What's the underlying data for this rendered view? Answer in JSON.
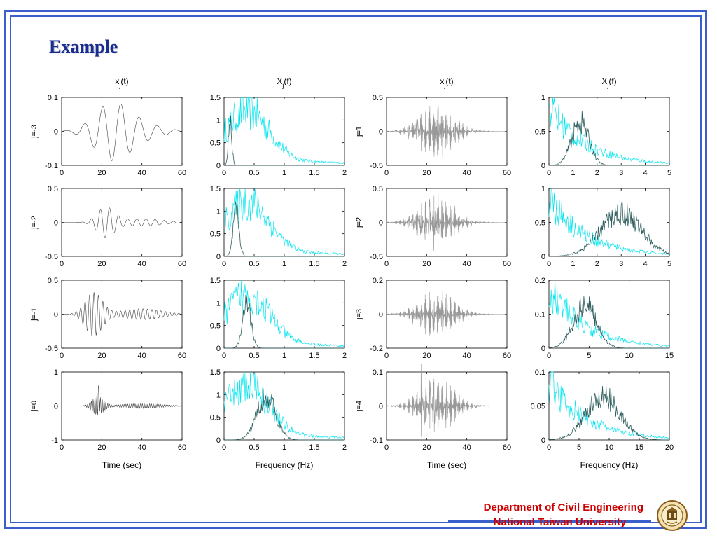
{
  "slide": {
    "title": "Example",
    "footer": {
      "department": "Department of Civil Engineering",
      "university": "National Taiwan University"
    },
    "accent_color": "#3a5fcd",
    "footer_color": "#cc0000",
    "logo_icon": "university-seal-icon"
  },
  "chart_data": {
    "type": "line",
    "layout": "4x4 grid of subplots",
    "column_titles": [
      "x_j(t)",
      "X_j(f)",
      "x_j(t)",
      "X_j(f)"
    ],
    "column_xlabels": [
      "Time (sec)",
      "Frequency (Hz)",
      "Time (sec)",
      "Frequency (Hz)"
    ],
    "row_labels_left": [
      "j=-3",
      "j=-2",
      "j=-1",
      "j=0"
    ],
    "row_labels_right": [
      "j=1",
      "j=2",
      "j=3",
      "j=4"
    ],
    "series_colors": {
      "original_spectrum": "#00e5ee",
      "component_spectrum": "#2e5e5e",
      "time_signal": "#555555"
    },
    "panels": [
      [
        {
          "kind": "time",
          "label": "j=-3",
          "xlim": [
            0,
            60
          ],
          "xticks": [
            "0",
            "20",
            "40",
            "60"
          ],
          "ylim": [
            -0.1,
            0.1
          ],
          "yticks": [
            "-0.1",
            "0",
            "0.1"
          ]
        },
        {
          "kind": "freq",
          "xlim": [
            0,
            2
          ],
          "xticks": [
            "0",
            "0.5",
            "1",
            "1.5",
            "2"
          ],
          "ylim": [
            0,
            1.5
          ],
          "yticks": [
            "0",
            "0.5",
            "1",
            "1.5"
          ]
        },
        {
          "kind": "time",
          "label": "j=1",
          "xlim": [
            0,
            60
          ],
          "xticks": [
            "0",
            "20",
            "40",
            "60"
          ],
          "ylim": [
            -0.5,
            0.5
          ],
          "yticks": [
            "-0.5",
            "0",
            "0.5"
          ]
        },
        {
          "kind": "freq",
          "xlim": [
            0,
            5
          ],
          "xticks": [
            "0",
            "1",
            "2",
            "3",
            "4",
            "5"
          ],
          "ylim": [
            0,
            1
          ],
          "yticks": [
            "0",
            "0.5",
            "1"
          ]
        }
      ],
      [
        {
          "kind": "time",
          "label": "j=-2",
          "xlim": [
            0,
            60
          ],
          "xticks": [
            "0",
            "20",
            "40",
            "60"
          ],
          "ylim": [
            -0.5,
            0.5
          ],
          "yticks": [
            "-0.5",
            "0",
            "0.5"
          ]
        },
        {
          "kind": "freq",
          "xlim": [
            0,
            2
          ],
          "xticks": [
            "0",
            "0.5",
            "1",
            "1.5",
            "2"
          ],
          "ylim": [
            0,
            1.5
          ],
          "yticks": [
            "0",
            "0.5",
            "1",
            "1.5"
          ]
        },
        {
          "kind": "time",
          "label": "j=2",
          "xlim": [
            0,
            60
          ],
          "xticks": [
            "0",
            "20",
            "40",
            "60"
          ],
          "ylim": [
            -0.5,
            0.5
          ],
          "yticks": [
            "-0.5",
            "0",
            "0.5"
          ]
        },
        {
          "kind": "freq",
          "xlim": [
            0,
            5
          ],
          "xticks": [
            "0",
            "1",
            "2",
            "3",
            "4",
            "5"
          ],
          "ylim": [
            0,
            1
          ],
          "yticks": [
            "0",
            "0.5",
            "1"
          ]
        }
      ],
      [
        {
          "kind": "time",
          "label": "j=-1",
          "xlim": [
            0,
            60
          ],
          "xticks": [
            "0",
            "20",
            "40",
            "60"
          ],
          "ylim": [
            -0.5,
            0.5
          ],
          "yticks": [
            "-0.5",
            "0",
            "0.5"
          ]
        },
        {
          "kind": "freq",
          "xlim": [
            0,
            2
          ],
          "xticks": [
            "0",
            "0.5",
            "1",
            "1.5",
            "2"
          ],
          "ylim": [
            0,
            1.5
          ],
          "yticks": [
            "0",
            "0.5",
            "1",
            "1.5"
          ]
        },
        {
          "kind": "time",
          "label": "j=3",
          "xlim": [
            0,
            60
          ],
          "xticks": [
            "0",
            "20",
            "40",
            "60"
          ],
          "ylim": [
            -0.2,
            0.2
          ],
          "yticks": [
            "-0.2",
            "0",
            "0.2"
          ]
        },
        {
          "kind": "freq",
          "xlim": [
            0,
            15
          ],
          "xticks": [
            "0",
            "5",
            "10",
            "15"
          ],
          "ylim": [
            0,
            0.2
          ],
          "yticks": [
            "0",
            "0.1",
            "0.2"
          ]
        }
      ],
      [
        {
          "kind": "time",
          "label": "j=0",
          "xlim": [
            0,
            60
          ],
          "xticks": [
            "0",
            "20",
            "40",
            "60"
          ],
          "ylim": [
            -1,
            1
          ],
          "yticks": [
            "-1",
            "0",
            "1"
          ]
        },
        {
          "kind": "freq",
          "xlim": [
            0,
            2
          ],
          "xticks": [
            "0",
            "0.5",
            "1",
            "1.5",
            "2"
          ],
          "ylim": [
            0,
            1.5
          ],
          "yticks": [
            "0",
            "0.5",
            "1",
            "1.5"
          ]
        },
        {
          "kind": "time",
          "label": "j=4",
          "xlim": [
            0,
            60
          ],
          "xticks": [
            "0",
            "20",
            "40",
            "60"
          ],
          "ylim": [
            -0.1,
            0.1
          ],
          "yticks": [
            "-0.1",
            "0",
            "0.1"
          ]
        },
        {
          "kind": "freq",
          "xlim": [
            0,
            20
          ],
          "xticks": [
            "0",
            "5",
            "10",
            "15",
            "20"
          ],
          "ylim": [
            0,
            0.1
          ],
          "yticks": [
            "0",
            "0.05",
            "0.1"
          ]
        }
      ]
    ]
  }
}
